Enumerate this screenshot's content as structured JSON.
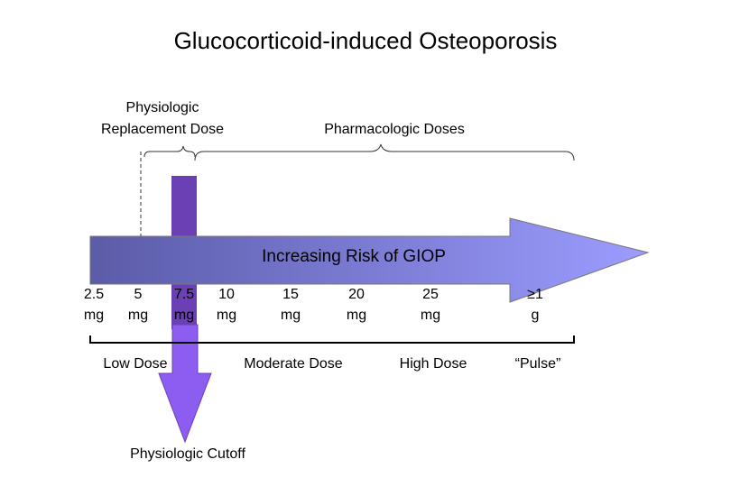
{
  "title": "Glucocorticoid-induced Osteoporosis",
  "replacement_label": [
    "Physiologic",
    "Replacement Dose"
  ],
  "pharmacologic_label": "Pharmacologic Doses",
  "arrow_label": "Increasing Risk of GIOP",
  "doses": [
    {
      "amount": "2.5",
      "unit": "mg"
    },
    {
      "amount": "5",
      "unit": "mg"
    },
    {
      "amount": "7.5",
      "unit": "mg"
    },
    {
      "amount": "10",
      "unit": "mg"
    },
    {
      "amount": "15",
      "unit": "mg"
    },
    {
      "amount": "20",
      "unit": "mg"
    },
    {
      "amount": "25",
      "unit": "mg"
    },
    {
      "amount": "≥1",
      "unit": "g"
    }
  ],
  "ranges": [
    "Low Dose",
    "Moderate Dose",
    "High Dose",
    "“Pulse”"
  ],
  "cutoff_label": "Physiologic Cutoff"
}
